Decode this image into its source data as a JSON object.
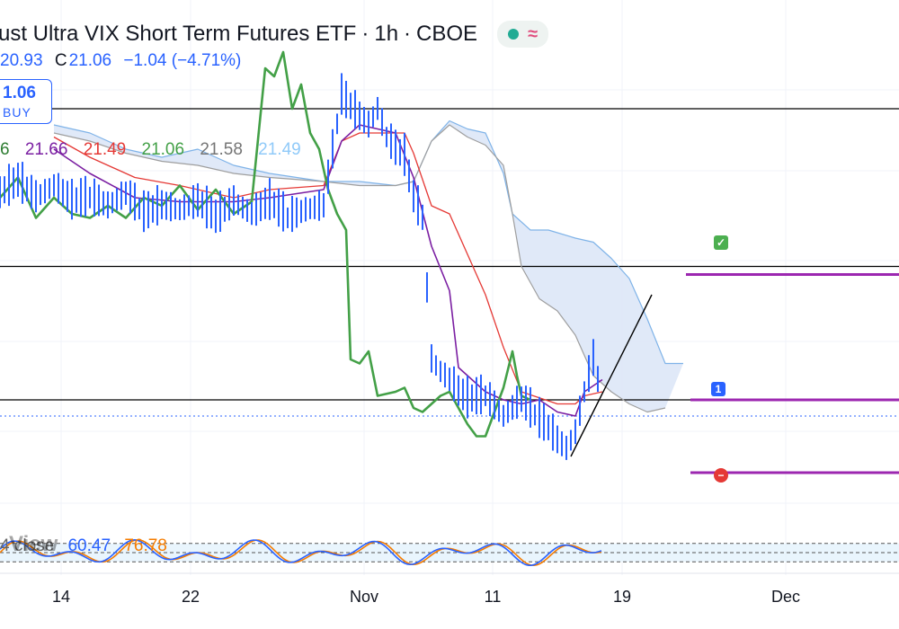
{
  "header": {
    "title": "ust Ultra VIX Short Term Futures ETF",
    "interval": "1h",
    "exchange": "CBOE",
    "separator": "·"
  },
  "ohlc": {
    "low_value": "20.93",
    "close_label": "C",
    "close_value": "21.06",
    "change": "−1.04 (−4.71%)"
  },
  "trade_box": {
    "price": "1.06",
    "action": "BUY"
  },
  "ichimoku_values": [
    {
      "text": "6",
      "color": "#2e7d32"
    },
    {
      "text": "21.66",
      "color": "#7b1fa2"
    },
    {
      "text": "21.49",
      "color": "#e53935"
    },
    {
      "text": "21.06",
      "color": "#43a047"
    },
    {
      "text": "21.58",
      "color": "#757575"
    },
    {
      "text": "21.49",
      "color": "#90caf9"
    }
  ],
  "oscillator": {
    "name": "4 close",
    "k_value": "60.47",
    "d_value": "76.78"
  },
  "watermark": "View",
  "icons": [
    "checkmark-target-icon",
    "entry-marker-icon",
    "stop-loss-icon"
  ],
  "colors": {
    "price": "#2962ff",
    "kijun": "#e53935",
    "tenkan": "#7b1fa2",
    "chikou": "#43a047",
    "cloud": "#dde7f7",
    "horizontal_levels": "#000000",
    "targets": "#9c27b0"
  },
  "chart_data": {
    "type": "line",
    "title": "ust Ultra VIX Short Term Futures ETF · 1h · CBOE",
    "xlabel": "",
    "ylabel": "",
    "x_ticks": [
      "14",
      "22",
      "Nov",
      "11",
      "19",
      "Dec"
    ],
    "series": [
      {
        "name": "",
        "role": "price_close",
        "points": [
          [
            0,
            22.1
          ],
          [
            20,
            22.4
          ],
          [
            40,
            22.0
          ],
          [
            60,
            22.3
          ],
          [
            80,
            21.9
          ],
          [
            100,
            22.0
          ],
          [
            120,
            21.8
          ],
          [
            140,
            22.1
          ],
          [
            160,
            21.6
          ],
          [
            180,
            21.8
          ],
          [
            200,
            21.7
          ],
          [
            220,
            21.9
          ],
          [
            240,
            21.5
          ],
          [
            260,
            21.9
          ],
          [
            280,
            21.6
          ],
          [
            300,
            21.9
          ],
          [
            320,
            21.5
          ],
          [
            340,
            21.7
          ],
          [
            360,
            21.8
          ],
          [
            380,
            24.5
          ],
          [
            400,
            24.0
          ],
          [
            410,
            23.8
          ],
          [
            420,
            24.2
          ],
          [
            430,
            23.5
          ],
          [
            440,
            23.2
          ],
          [
            450,
            23.0
          ],
          [
            460,
            22.0
          ],
          [
            470,
            21.5
          ],
          [
            480,
            18.0
          ],
          [
            490,
            17.7
          ],
          [
            500,
            17.5
          ],
          [
            510,
            17.2
          ],
          [
            520,
            17.0
          ],
          [
            540,
            17.1
          ],
          [
            560,
            16.6
          ],
          [
            580,
            17.0
          ],
          [
            600,
            16.5
          ],
          [
            610,
            16.3
          ],
          [
            620,
            16.0
          ],
          [
            630,
            15.8
          ],
          [
            640,
            16.2
          ],
          [
            650,
            17.2
          ],
          [
            660,
            18.0
          ],
          [
            665,
            17.5
          ],
          [
            670,
            17.0
          ]
        ]
      },
      {
        "name": "",
        "role": "chikou_span",
        "points": [
          [
            0,
            22.0
          ],
          [
            20,
            22.5
          ],
          [
            40,
            21.5
          ],
          [
            60,
            22.0
          ],
          [
            80,
            21.6
          ],
          [
            100,
            21.5
          ],
          [
            120,
            21.8
          ],
          [
            140,
            21.5
          ],
          [
            160,
            22.0
          ],
          [
            180,
            21.8
          ],
          [
            200,
            22.3
          ],
          [
            220,
            21.7
          ],
          [
            240,
            22.2
          ],
          [
            260,
            21.6
          ],
          [
            280,
            21.9
          ],
          [
            295,
            25.2
          ],
          [
            305,
            25.0
          ],
          [
            315,
            25.6
          ],
          [
            325,
            24.2
          ],
          [
            335,
            24.8
          ],
          [
            345,
            23.6
          ],
          [
            355,
            23.2
          ],
          [
            365,
            22.2
          ],
          [
            375,
            21.6
          ],
          [
            385,
            21.2
          ],
          [
            390,
            18.0
          ],
          [
            400,
            17.9
          ],
          [
            410,
            18.2
          ],
          [
            420,
            17.1
          ],
          [
            440,
            17.2
          ],
          [
            450,
            17.3
          ],
          [
            460,
            16.8
          ],
          [
            470,
            16.7
          ],
          [
            480,
            16.9
          ],
          [
            490,
            17.1
          ],
          [
            500,
            17.2
          ],
          [
            510,
            16.8
          ],
          [
            520,
            16.4
          ],
          [
            530,
            16.1
          ],
          [
            540,
            16.1
          ],
          [
            550,
            16.7
          ],
          [
            560,
            17.3
          ],
          [
            570,
            18.2
          ],
          [
            575,
            17.6
          ],
          [
            580,
            17.1
          ],
          [
            590,
            17.0
          ]
        ]
      },
      {
        "name": "",
        "role": "kijun_sen",
        "points": [
          [
            60,
            23.5
          ],
          [
            100,
            23.0
          ],
          [
            150,
            22.5
          ],
          [
            200,
            22.3
          ],
          [
            260,
            22.0
          ],
          [
            300,
            22.2
          ],
          [
            360,
            22.3
          ],
          [
            380,
            23.4
          ],
          [
            400,
            23.6
          ],
          [
            450,
            23.6
          ],
          [
            460,
            23.1
          ],
          [
            480,
            21.8
          ],
          [
            500,
            21.6
          ],
          [
            520,
            20.6
          ],
          [
            540,
            19.6
          ],
          [
            560,
            18.3
          ],
          [
            580,
            17.2
          ],
          [
            620,
            16.9
          ],
          [
            640,
            16.9
          ],
          [
            650,
            17.1
          ],
          [
            670,
            17.2
          ]
        ]
      },
      {
        "name": "",
        "role": "tenkan_sen",
        "points": [
          [
            60,
            23.2
          ],
          [
            100,
            22.6
          ],
          [
            150,
            22.0
          ],
          [
            200,
            21.9
          ],
          [
            260,
            21.9
          ],
          [
            300,
            22.0
          ],
          [
            360,
            22.2
          ],
          [
            380,
            23.4
          ],
          [
            400,
            23.8
          ],
          [
            440,
            23.6
          ],
          [
            460,
            22.5
          ],
          [
            480,
            20.8
          ],
          [
            500,
            19.7
          ],
          [
            510,
            17.8
          ],
          [
            540,
            17.2
          ],
          [
            560,
            17.0
          ],
          [
            580,
            16.9
          ],
          [
            600,
            17.0
          ],
          [
            620,
            16.7
          ],
          [
            640,
            16.6
          ],
          [
            650,
            17.2
          ],
          [
            670,
            17.5
          ]
        ]
      },
      {
        "name": "",
        "role": "senkou_span_a",
        "points": [
          [
            60,
            23.8
          ],
          [
            100,
            23.6
          ],
          [
            140,
            23.2
          ],
          [
            180,
            23.0
          ],
          [
            220,
            23.2
          ],
          [
            260,
            22.8
          ],
          [
            300,
            22.6
          ],
          [
            360,
            22.4
          ],
          [
            400,
            22.4
          ],
          [
            440,
            22.3
          ],
          [
            460,
            22.4
          ],
          [
            480,
            23.4
          ],
          [
            500,
            23.9
          ],
          [
            520,
            23.7
          ],
          [
            540,
            23.6
          ],
          [
            560,
            22.6
          ],
          [
            570,
            21.6
          ],
          [
            590,
            21.2
          ],
          [
            610,
            21.2
          ],
          [
            640,
            21.0
          ],
          [
            660,
            20.9
          ],
          [
            680,
            20.5
          ],
          [
            700,
            20.0
          ],
          [
            720,
            19.0
          ],
          [
            740,
            17.9
          ],
          [
            760,
            17.9
          ]
        ]
      },
      {
        "name": "",
        "role": "senkou_span_b",
        "points": [
          [
            60,
            23.6
          ],
          [
            100,
            23.4
          ],
          [
            140,
            23.1
          ],
          [
            180,
            22.9
          ],
          [
            220,
            22.8
          ],
          [
            260,
            22.6
          ],
          [
            300,
            22.5
          ],
          [
            360,
            22.4
          ],
          [
            400,
            22.3
          ],
          [
            440,
            22.3
          ],
          [
            460,
            22.4
          ],
          [
            480,
            23.4
          ],
          [
            500,
            23.8
          ],
          [
            520,
            23.5
          ],
          [
            540,
            23.3
          ],
          [
            560,
            22.8
          ],
          [
            570,
            21.6
          ],
          [
            580,
            20.3
          ],
          [
            600,
            19.5
          ],
          [
            620,
            19.2
          ],
          [
            640,
            18.6
          ],
          [
            660,
            17.6
          ],
          [
            680,
            17.2
          ],
          [
            700,
            16.9
          ],
          [
            720,
            16.7
          ],
          [
            740,
            16.8
          ]
        ]
      }
    ],
    "horizontal_levels": [
      24.2,
      20.3,
      17.0,
      16.6
    ],
    "trend_line": [
      [
        635,
        15.6
      ],
      [
        725,
        19.6
      ]
    ],
    "targets": [
      {
        "level": 20.1,
        "kind": "take-profit"
      },
      {
        "level": 17.0,
        "kind": "entry"
      },
      {
        "level": 15.2,
        "kind": "stop-loss"
      }
    ],
    "oscillator": {
      "name": "4 close",
      "k": 60.47,
      "d": 76.78,
      "upper_band": 80,
      "lower_band": 20
    }
  }
}
